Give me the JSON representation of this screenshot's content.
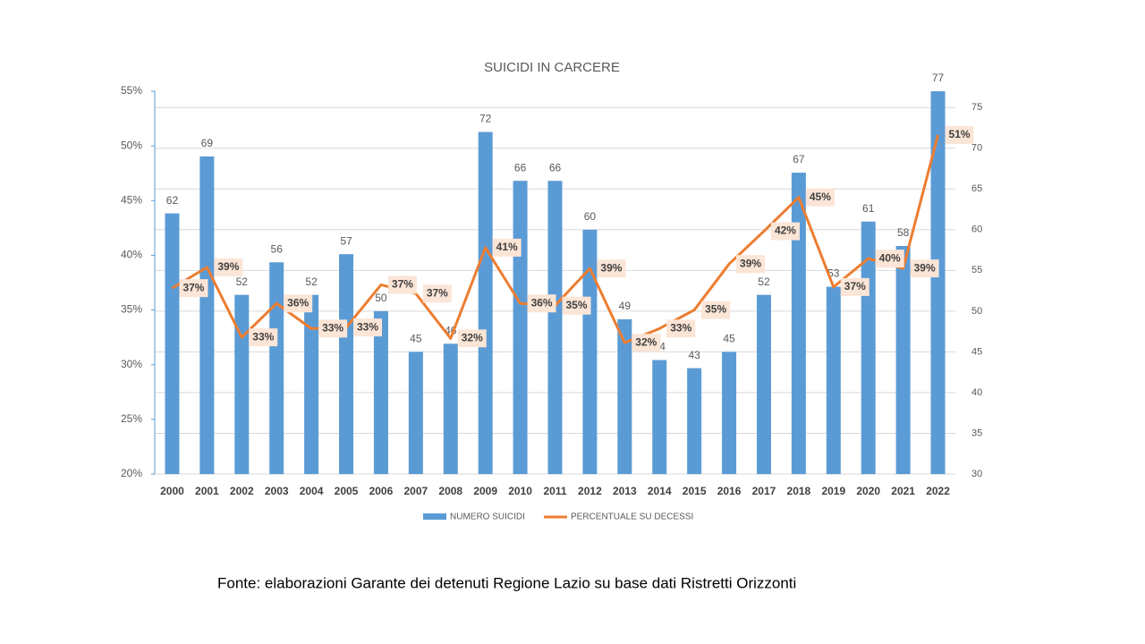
{
  "chart_data": {
    "type": "bar-line",
    "title": "SUICIDI IN CARCERE",
    "source": "Fonte: elaborazioni Garante dei detenuti Regione Lazio su base dati Ristretti Orizzonti",
    "categories": [
      "2000",
      "2001",
      "2002",
      "2003",
      "2004",
      "2005",
      "2006",
      "2007",
      "2008",
      "2009",
      "2010",
      "2011",
      "2012",
      "2013",
      "2014",
      "2015",
      "2016",
      "2017",
      "2018",
      "2019",
      "2020",
      "2021",
      "2022"
    ],
    "series": [
      {
        "name": "NUMERO SUICIDI",
        "type": "bar",
        "axis": "y2",
        "color": "#5b9bd5",
        "values": [
          62,
          69,
          52,
          56,
          52,
          57,
          50,
          45,
          46,
          72,
          66,
          66,
          60,
          49,
          44,
          43,
          45,
          52,
          67,
          53,
          61,
          58,
          77
        ]
      },
      {
        "name": "PERCENTUALE SU DECESSI",
        "type": "line",
        "axis": "y",
        "color": "#ed7d31",
        "values": [
          37.0,
          38.9,
          32.5,
          35.6,
          33.3,
          33.4,
          37.3,
          36.5,
          32.4,
          40.7,
          35.6,
          35.4,
          38.8,
          32.0,
          33.3,
          35.0,
          39.2,
          42.2,
          45.3,
          37.1,
          39.7,
          38.8,
          51.0
        ],
        "value_labels": [
          "37%",
          "39%",
          "33%",
          "36%",
          "33%",
          "33%",
          "37%",
          "37%",
          "32%",
          "41%",
          "36%",
          "35%",
          "39%",
          "32%",
          "33%",
          "35%",
          "39%",
          "42%",
          "45%",
          "37%",
          "40%",
          "39%",
          "51%"
        ]
      }
    ],
    "ylim": [
      20,
      55
    ],
    "yticks": [
      {
        "value": 20,
        "label": "20%"
      },
      {
        "value": 25,
        "label": "25%"
      },
      {
        "value": 30,
        "label": "30%"
      },
      {
        "value": 35,
        "label": "35%"
      },
      {
        "value": 40,
        "label": "40%"
      },
      {
        "value": 45,
        "label": "45%"
      },
      {
        "value": 50,
        "label": "50%"
      },
      {
        "value": 55,
        "label": "55%"
      }
    ],
    "y2lim": [
      30,
      77
    ],
    "y2ticks": [
      30,
      35,
      40,
      45,
      50,
      55,
      60,
      65,
      70,
      75
    ],
    "grid": true,
    "legend": "bottom"
  }
}
